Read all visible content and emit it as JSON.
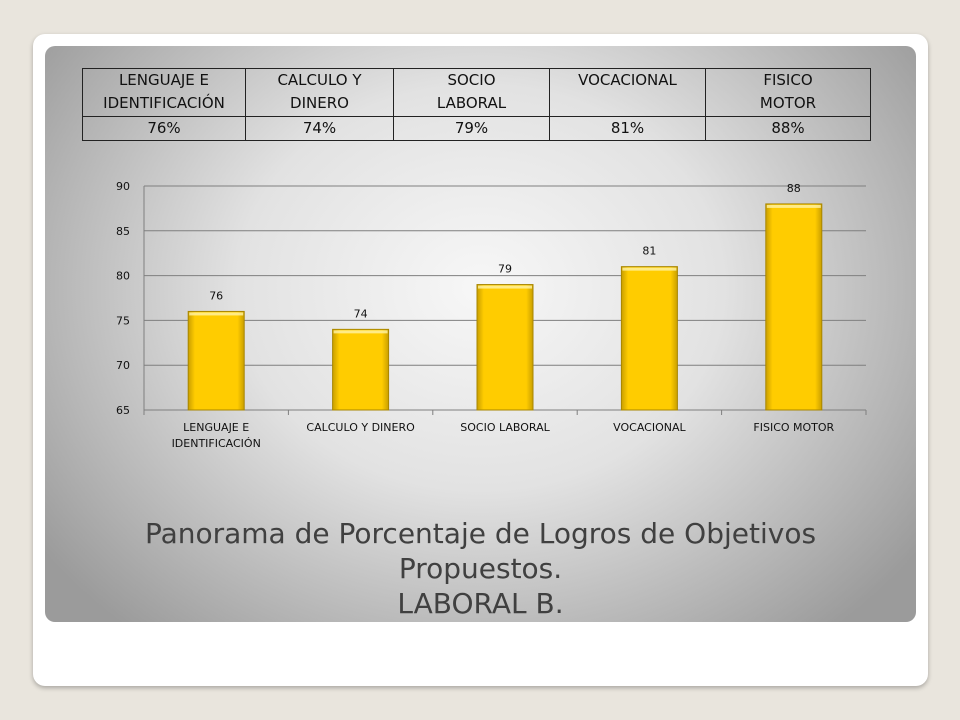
{
  "table": {
    "headers": [
      "LENGUAJE E\nIDENTIFICACIÓN",
      "CALCULO Y\nDINERO",
      "SOCIO\nLABORAL",
      "VOCACIONAL",
      "FISICO\nMOTOR"
    ],
    "values": [
      "76%",
      "74%",
      "79%",
      "81%",
      "88%"
    ]
  },
  "caption": {
    "line1": "Panorama de Porcentaje de Logros de Objetivos",
    "line2": "Propuestos.",
    "line3": "LABORAL  B."
  },
  "colors": {
    "bar": "#ffcc00",
    "bar_edge": "#a88600",
    "grid": "#7f7f7f"
  },
  "chart_data": {
    "type": "bar",
    "categories": [
      "LENGUAJE E\nIDENTIFICACIÓN",
      "CALCULO Y DINERO",
      "SOCIO LABORAL",
      "VOCACIONAL",
      "FISICO MOTOR"
    ],
    "values": [
      76,
      74,
      79,
      81,
      88
    ],
    "data_labels": [
      "76",
      "74",
      "79",
      "81",
      "88"
    ],
    "yticks": [
      65,
      70,
      75,
      80,
      85,
      90
    ],
    "ylim": [
      65,
      90
    ],
    "grid": true,
    "legend": "none",
    "title": "",
    "xlabel": "",
    "ylabel": ""
  }
}
